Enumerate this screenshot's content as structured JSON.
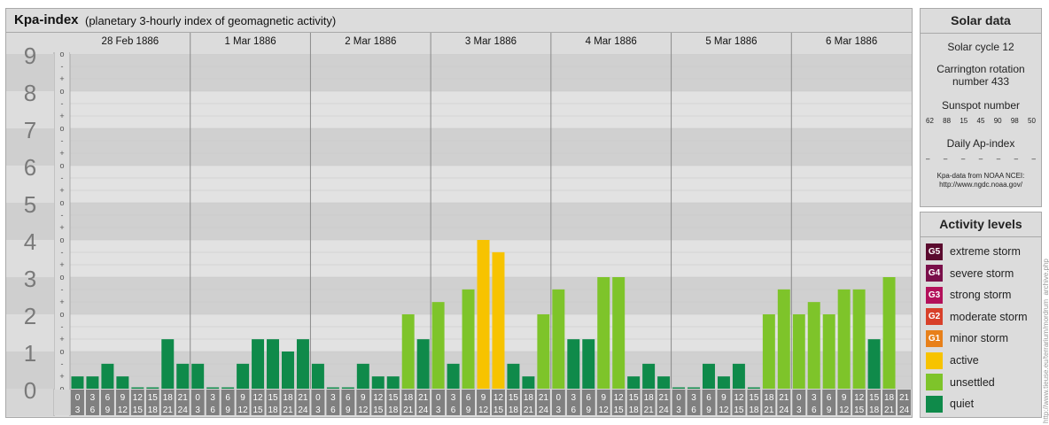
{
  "header": {
    "title": "Kpa-index",
    "subtitle": "(planetary 3-hourly index of geomagnetic activity)"
  },
  "chart_data": {
    "type": "bar",
    "title": "Kpa-index",
    "subtitle": "(planetary 3-hourly index of geomagnetic activity)",
    "ylim": [
      0,
      9
    ],
    "y_ticks": [
      "0",
      "1",
      "2",
      "3",
      "4",
      "5",
      "6",
      "7",
      "8",
      "9"
    ],
    "sub_ticks": [
      "o",
      "+",
      "-"
    ],
    "days": [
      "28 Feb 1886",
      "1 Mar 1886",
      "2 Mar 1886",
      "3 Mar 1886",
      "4 Mar 1886",
      "5 Mar 1886",
      "6 Mar 1886"
    ],
    "hour_labels": [
      [
        "0",
        "3"
      ],
      [
        "3",
        "6"
      ],
      [
        "6",
        "9"
      ],
      [
        "9",
        "12"
      ],
      [
        "12",
        "15"
      ],
      [
        "15",
        "18"
      ],
      [
        "18",
        "21"
      ],
      [
        "21",
        "24"
      ]
    ],
    "values": [
      [
        0.33,
        0.33,
        0.67,
        0.33,
        0.0,
        0.0,
        1.33,
        0.67
      ],
      [
        0.67,
        0.0,
        0.0,
        0.67,
        1.33,
        1.33,
        1.0,
        1.33
      ],
      [
        0.67,
        0.0,
        0.0,
        0.67,
        0.33,
        0.33,
        2.0,
        1.33
      ],
      [
        2.33,
        0.67,
        2.67,
        4.0,
        3.67,
        0.67,
        0.33,
        2.0
      ],
      [
        2.67,
        1.33,
        1.33,
        3.0,
        3.0,
        0.33,
        0.67,
        0.33
      ],
      [
        0.0,
        0.0,
        0.67,
        0.33,
        0.67,
        0.0,
        2.0,
        2.67
      ],
      [
        2.0,
        2.33,
        2.0,
        2.67,
        2.67,
        1.33,
        3.0
      ]
    ],
    "levels_by_kp": [
      {
        "min": 0,
        "max": 2,
        "level": "quiet",
        "color": "#0f8a4a"
      },
      {
        "min": 2,
        "max": 3.67,
        "level": "unsettled",
        "color": "#7ec42a"
      },
      {
        "min": 3.67,
        "max": 5,
        "level": "active",
        "color": "#f7c300"
      }
    ]
  },
  "solar": {
    "heading": "Solar data",
    "cycle": "Solar cycle 12",
    "carrington": "Carrington rotation number 433",
    "sunspot_label": "Sunspot number",
    "sunspots": [
      "62",
      "88",
      "15",
      "45",
      "90",
      "98",
      "50"
    ],
    "ap_label": "Daily Ap-index",
    "ap_values": [
      "–",
      "–",
      "–",
      "–",
      "–",
      "–",
      "–"
    ],
    "source_line1": "Kpa-data from NOAA NCEI:",
    "source_line2": "http://www.ngdc.noaa.gov/"
  },
  "activity_levels": {
    "heading": "Activity levels",
    "items": [
      {
        "code": "G5",
        "label": "extreme storm",
        "color": "#5a0a2e"
      },
      {
        "code": "G4",
        "label": "severe storm",
        "color": "#7a0f4a"
      },
      {
        "code": "G3",
        "label": "strong storm",
        "color": "#b3105a"
      },
      {
        "code": "G2",
        "label": "moderate storm",
        "color": "#d8402a"
      },
      {
        "code": "G1",
        "label": "minor storm",
        "color": "#e8801a"
      },
      {
        "code": "",
        "label": "active",
        "color": "#f7c300"
      },
      {
        "code": "",
        "label": "unsettled",
        "color": "#7ec42a"
      },
      {
        "code": "",
        "label": "quiet",
        "color": "#0f8a4a"
      }
    ]
  },
  "watermark": "http://www.tieuse.eu/terrarium/mordrum_archive.php"
}
